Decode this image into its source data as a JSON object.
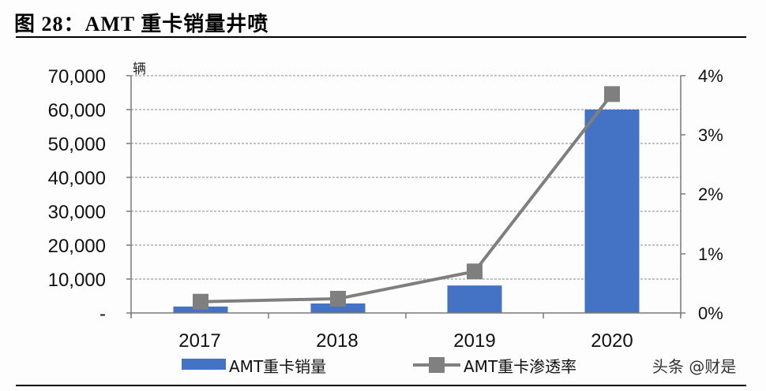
{
  "header": {
    "title": "图 28：AMT 重卡销量井喷"
  },
  "chart_data": {
    "type": "bar+line",
    "title": "图 28：AMT 重卡销量井喷",
    "categories": [
      "2017",
      "2018",
      "2019",
      "2020"
    ],
    "series": [
      {
        "name": "AMT重卡销量",
        "type": "bar",
        "axis": "left",
        "color": "#4472C4",
        "values": [
          1900,
          2800,
          8100,
          60000
        ]
      },
      {
        "name": "AMT重卡渗透率",
        "type": "line",
        "axis": "right",
        "color": "#7F7F7F",
        "marker": "square",
        "values": [
          0.19,
          0.24,
          0.7,
          3.69
        ]
      }
    ],
    "left_axis": {
      "unit_label": "辆",
      "ylim": [
        0,
        70000
      ],
      "ticks": [
        "-",
        "10,000",
        "20,000",
        "30,000",
        "40,000",
        "50,000",
        "60,000",
        "70,000"
      ]
    },
    "right_axis": {
      "ylim": [
        0,
        4
      ],
      "ticks": [
        "0%",
        "1%",
        "2%",
        "3%",
        "4%"
      ]
    },
    "grid": true,
    "legend_position": "bottom"
  },
  "axes": {
    "unit": "辆",
    "left_ticks": [
      "-",
      "10,000",
      "20,000",
      "30,000",
      "40,000",
      "50,000",
      "60,000",
      "70,000"
    ],
    "right_ticks": [
      "0%",
      "1%",
      "2%",
      "3%",
      "4%"
    ],
    "x_ticks": [
      "2017",
      "2018",
      "2019",
      "2020"
    ]
  },
  "legend": {
    "bar_label": "AMT重卡销量",
    "line_label": "AMT重卡渗透率"
  },
  "watermark": "头条 @财是"
}
